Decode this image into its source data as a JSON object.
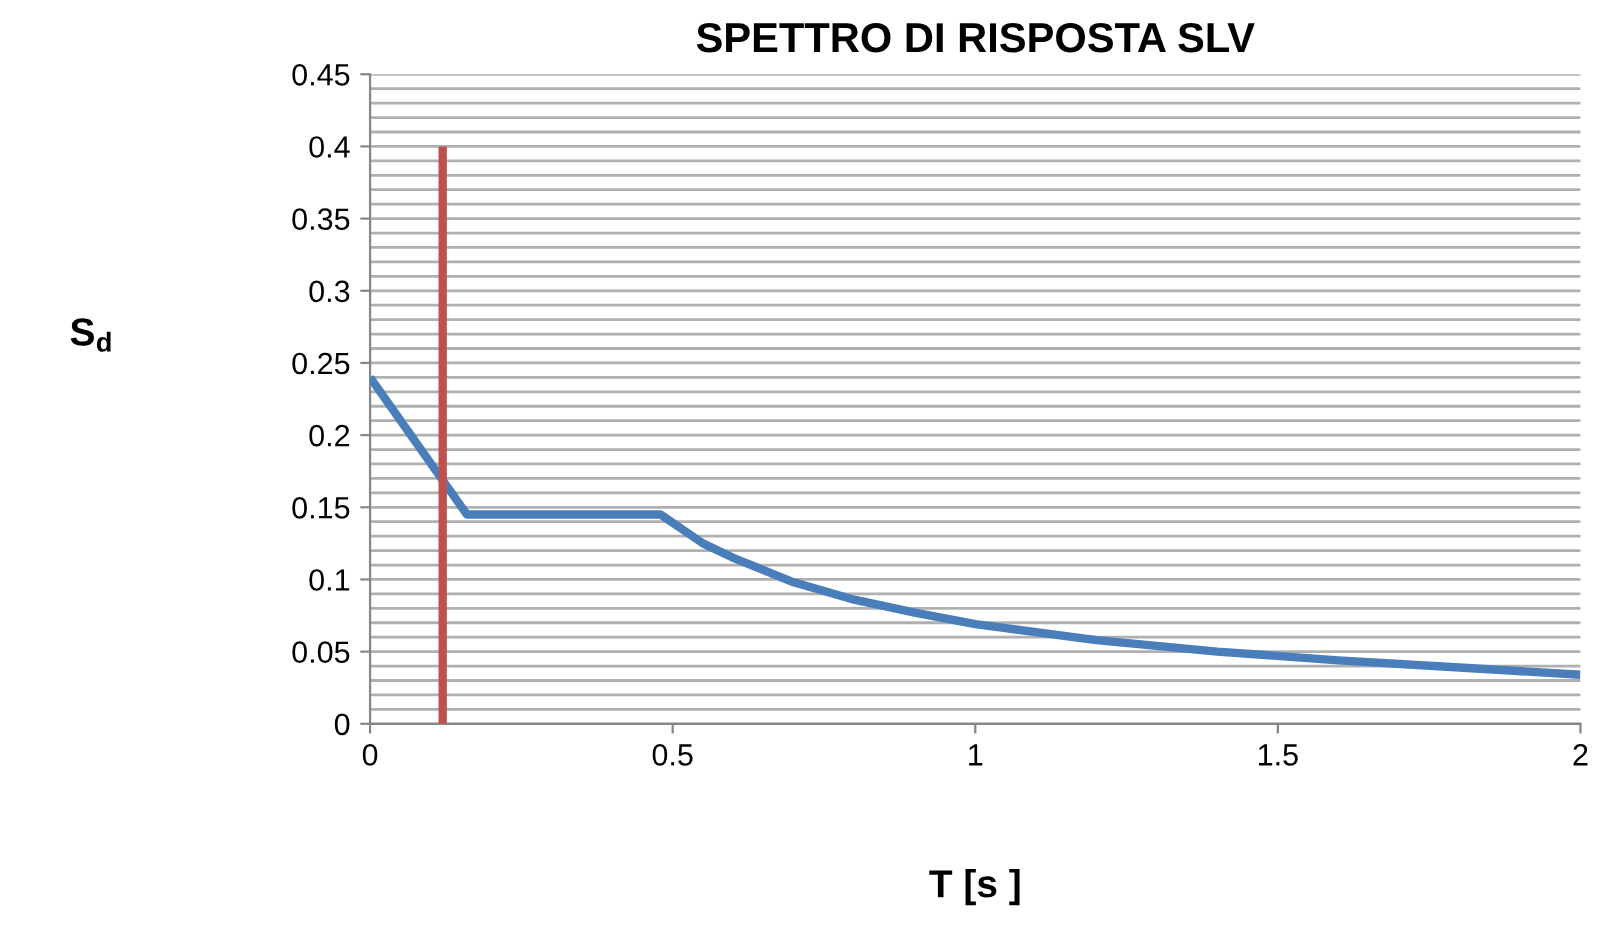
{
  "chart_data": {
    "type": "line",
    "title": "SPETTRO DI RISPOSTA SLV",
    "xlabel": "T [s ]",
    "ylabel": "S$_{d}$",
    "series": [
      {
        "color": "#4a7ebb",
        "x": [
          0,
          0.16,
          0.48,
          0.55,
          0.6,
          0.7,
          0.8,
          0.9,
          1.0,
          1.2,
          1.4,
          1.6,
          1.8,
          2.0
        ],
        "values": [
          0.24,
          0.145,
          0.145,
          0.125,
          0.115,
          0.098,
          0.086,
          0.077,
          0.069,
          0.058,
          0.05,
          0.044,
          0.039,
          0.034
        ]
      },
      {
        "color": "#c0504d",
        "x": [
          0.12,
          0.12
        ],
        "values": [
          0,
          0.4
        ]
      }
    ],
    "xlim": [
      0,
      2
    ],
    "xticks": [
      0,
      0.5,
      1,
      1.5,
      2
    ],
    "ylim": [
      0,
      0.45
    ],
    "yticks": [
      0,
      {
        "value": 0.01,
        "label": null
      },
      {
        "value": 0.02,
        "label": null
      },
      {
        "value": 0.03,
        "label": null
      },
      {
        "value": 0.04,
        "label": null
      },
      0.05,
      {
        "value": 0.06,
        "label": null
      },
      {
        "value": 0.07,
        "label": null
      },
      {
        "value": 0.08,
        "label": null
      },
      {
        "value": 0.09,
        "label": null
      },
      0.1,
      {
        "value": 0.11,
        "label": null
      },
      {
        "value": 0.12,
        "label": null
      },
      {
        "value": 0.13,
        "label": null
      },
      {
        "value": 0.14,
        "label": null
      },
      0.15,
      {
        "value": 0.16,
        "label": null
      },
      {
        "value": 0.17,
        "label": null
      },
      {
        "value": 0.18,
        "label": null
      },
      {
        "value": 0.19,
        "label": null
      },
      0.2,
      {
        "value": 0.21,
        "label": null
      },
      {
        "value": 0.22,
        "label": null
      },
      {
        "value": 0.23,
        "label": null
      },
      {
        "value": 0.24,
        "label": null
      },
      0.25,
      {
        "value": 0.26,
        "label": null
      },
      {
        "value": 0.27,
        "label": null
      },
      {
        "value": 0.28,
        "label": null
      },
      {
        "value": 0.29,
        "label": null
      },
      0.3,
      {
        "value": 0.31,
        "label": null
      },
      {
        "value": 0.32,
        "label": null
      },
      {
        "value": 0.33,
        "label": null
      },
      {
        "value": 0.34,
        "label": null
      },
      0.35,
      {
        "value": 0.36,
        "label": null
      },
      {
        "value": 0.37,
        "label": null
      },
      {
        "value": 0.38,
        "label": null
      },
      {
        "value": 0.39,
        "label": null
      },
      0.4,
      {
        "value": 0.41,
        "label": null
      },
      {
        "value": 0.42,
        "label": null
      },
      {
        "value": 0.43,
        "label": null
      },
      {
        "value": 0.44,
        "label": null
      },
      0.45
    ],
    "grid": "y",
    "legend": false
  }
}
